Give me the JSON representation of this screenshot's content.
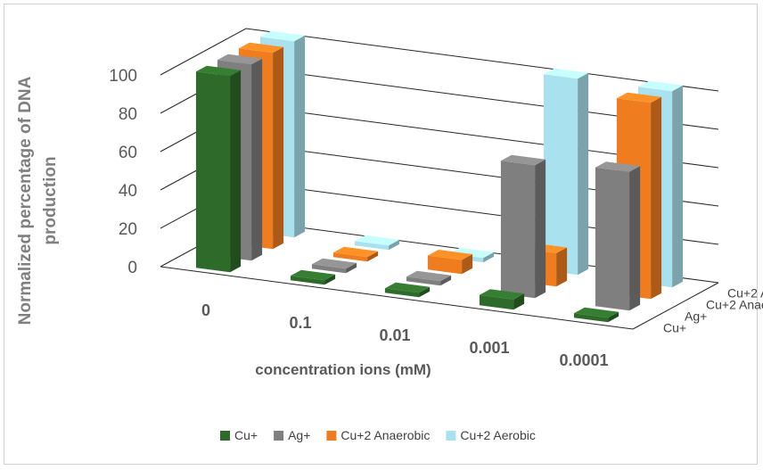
{
  "chart_data": {
    "type": "bar",
    "subtype": "3d-column",
    "categories": [
      "0",
      "0.1",
      "0.01",
      "0.001",
      "0.0001"
    ],
    "series": [
      {
        "name": "Cu+",
        "color": "#2e6b2a",
        "values": [
          100,
          0,
          0,
          3,
          0
        ]
      },
      {
        "name": "Ag+",
        "color": "#7f7f7f",
        "values": [
          100,
          0,
          0,
          67,
          70
        ]
      },
      {
        "name": "Cu+2 Anaerobic",
        "color": "#f07c20",
        "values": [
          100,
          0,
          5,
          15,
          100
        ]
      },
      {
        "name": "Cu+2 Aerobic",
        "color": "#a9e2ee",
        "values": [
          100,
          0,
          0,
          100,
          100
        ]
      }
    ],
    "yticks": [
      "0",
      "20",
      "40",
      "60",
      "80",
      "100"
    ],
    "ylim": [
      0,
      100
    ],
    "ylabel_line1": "Normalized percentage of DNA",
    "ylabel_line2": "production",
    "xlabel": "concentration  ions (mM)",
    "legend_position": "bottom",
    "grid": true
  }
}
